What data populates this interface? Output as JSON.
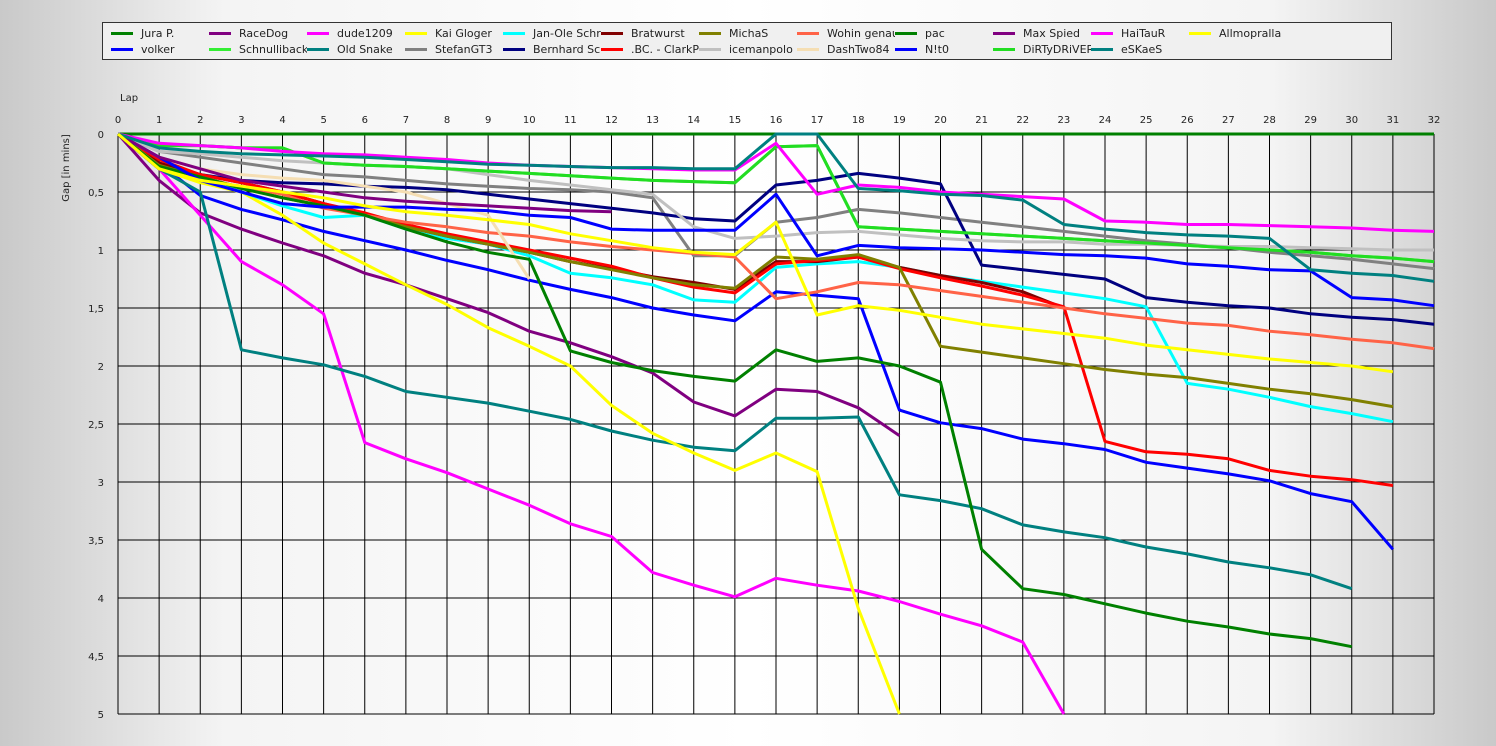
{
  "chart_data": {
    "type": "line",
    "xlabel": "Lap",
    "ylabel": "Gap [in mins]",
    "xlim": [
      0,
      32
    ],
    "ylim": [
      0,
      5
    ],
    "y_ticks": [
      "0",
      "0,5",
      "1",
      "1,5",
      "2",
      "2,5",
      "3",
      "3,5",
      "4",
      "4,5",
      "5"
    ],
    "x_ticks": [
      "0",
      "1",
      "2",
      "3",
      "4",
      "5",
      "6",
      "7",
      "8",
      "9",
      "10",
      "11",
      "12",
      "13",
      "14",
      "15",
      "16",
      "17",
      "18",
      "19",
      "20",
      "21",
      "22",
      "23",
      "24",
      "25",
      "26",
      "27",
      "28",
      "29",
      "30",
      "31",
      "32"
    ],
    "legend_position": "top",
    "grid": true,
    "series": [
      {
        "name": "Jura P.",
        "color": "#008000",
        "values": [
          0,
          0,
          0,
          0,
          0,
          0,
          0,
          0,
          0,
          0,
          0,
          0,
          0,
          0,
          0,
          0,
          0,
          0,
          0,
          0,
          0,
          0,
          0,
          0,
          0,
          0,
          0,
          0,
          0,
          0,
          0,
          0,
          0
        ]
      },
      {
        "name": "volker",
        "color": "#0000ff",
        "values": [
          0,
          0.25,
          0.53,
          0.65,
          0.74,
          0.84,
          0.92,
          1.0,
          1.09,
          1.17,
          1.26,
          1.34,
          1.41,
          1.5,
          1.56,
          1.61,
          1.36,
          1.39,
          1.42,
          2.38,
          2.49,
          2.54,
          2.63,
          2.67,
          2.72,
          2.83,
          2.88,
          2.93,
          2.99,
          3.1,
          3.17,
          3.58
        ]
      },
      {
        "name": "RaceDog",
        "color": "#800080",
        "values": [
          0,
          0.4,
          0.68,
          0.82,
          0.94,
          1.05,
          1.2,
          1.3,
          1.42,
          1.54,
          1.7,
          1.8,
          1.92,
          2.06,
          2.31,
          2.43,
          2.2,
          2.22,
          2.36,
          2.6
        ]
      },
      {
        "name": "Schnullibacke",
        "color": "#33ee33",
        "values": [
          0,
          0.1,
          0.1,
          0.12,
          0.12,
          0.25,
          0.27,
          0.28,
          0.3,
          0.32,
          0.34,
          0.36,
          0.38,
          0.4,
          0.41,
          0.42,
          0.11,
          0.1,
          0.8,
          0.82,
          0.84,
          0.86,
          0.88,
          0.9,
          0.92,
          0.94,
          0.96,
          0.98,
          1.0,
          1.02,
          1.05,
          1.07,
          1.1
        ]
      },
      {
        "name": "dude1209",
        "color": "#ff00ff",
        "values": [
          0,
          0.3,
          0.7,
          1.1,
          1.3,
          1.55,
          2.66,
          2.8,
          2.92,
          3.06,
          3.2,
          3.36,
          3.47,
          3.78,
          3.89,
          3.99,
          3.83,
          3.89,
          3.94,
          4.03,
          4.14,
          4.24,
          4.38,
          5.0
        ]
      },
      {
        "name": "Old Snake",
        "color": "#008080",
        "values": [
          0,
          0.3,
          0.5,
          1.86,
          1.93,
          1.99,
          2.09,
          2.22,
          2.27,
          2.32,
          2.39,
          2.46,
          2.56,
          2.64,
          2.7,
          2.73,
          2.45,
          2.45,
          2.44,
          3.11,
          3.16,
          3.23,
          3.37,
          3.43,
          3.48,
          3.56,
          3.62,
          3.69,
          3.74,
          3.8,
          3.92
        ]
      },
      {
        "name": "Kai Gloger",
        "color": "#ffff00",
        "values": [
          0,
          0.3,
          0.42,
          0.5,
          0.7,
          0.94,
          1.12,
          1.3,
          1.47,
          1.67,
          1.83,
          2.0,
          2.34,
          2.58,
          2.75,
          2.9,
          2.75,
          2.91,
          4.09,
          5.0
        ]
      },
      {
        "name": "StefanGT3",
        "color": "#808080",
        "values": [
          0,
          0.15,
          0.2,
          0.25,
          0.3,
          0.35,
          0.37,
          0.4,
          0.43,
          0.45,
          0.47,
          0.48,
          0.5,
          0.55,
          1.05,
          1.05,
          0.76,
          0.72,
          0.65,
          0.68,
          0.72,
          0.76,
          0.8,
          0.84,
          0.88,
          0.92,
          0.95,
          0.98,
          1.02,
          1.05,
          1.08,
          1.12,
          1.16
        ]
      },
      {
        "name": "Jan-Ole Schreiber",
        "color": "#00ffff",
        "values": [
          0,
          0.28,
          0.38,
          0.5,
          0.62,
          0.72,
          0.7,
          0.82,
          0.9,
          0.95,
          1.05,
          1.2,
          1.24,
          1.3,
          1.43,
          1.45,
          1.15,
          1.12,
          1.1,
          1.15,
          1.22,
          1.27,
          1.32,
          1.37,
          1.42,
          1.49,
          2.15,
          2.2,
          2.27,
          2.35,
          2.41,
          2.48
        ]
      },
      {
        "name": "Bernhard Schupfner",
        "color": "#000080",
        "values": [
          0,
          0.3,
          0.35,
          0.4,
          0.42,
          0.43,
          0.45,
          0.46,
          0.48,
          0.52,
          0.56,
          0.6,
          0.64,
          0.68,
          0.73,
          0.75,
          0.44,
          0.4,
          0.34,
          0.38,
          0.43,
          1.13,
          1.17,
          1.21,
          1.25,
          1.41,
          1.45,
          1.48,
          1.5,
          1.55,
          1.58,
          1.6,
          1.64
        ]
      },
      {
        "name": "Bratwurst",
        "color": "#800000",
        "values": [
          0,
          0.25,
          0.35,
          0.42,
          0.5,
          0.6,
          0.7,
          0.8,
          0.88,
          0.95,
          1.02,
          1.1,
          1.16,
          1.23,
          1.28,
          1.34,
          1.1,
          1.1,
          1.06,
          1.15,
          1.22,
          1.28,
          1.36,
          1.5
        ]
      },
      {
        "name": ".BC. - ClarkParker",
        "color": "#ff0000",
        "values": [
          0,
          0.22,
          0.35,
          0.42,
          0.5,
          0.6,
          0.68,
          0.78,
          0.86,
          0.93,
          1.0,
          1.07,
          1.14,
          1.24,
          1.32,
          1.37,
          1.12,
          1.09,
          1.06,
          1.16,
          1.24,
          1.31,
          1.39,
          1.49,
          2.65,
          2.74,
          2.76,
          2.8,
          2.9,
          2.95,
          2.98,
          3.03
        ]
      },
      {
        "name": "MichaS",
        "color": "#808000",
        "values": [
          0,
          0.27,
          0.37,
          0.46,
          0.55,
          0.62,
          0.7,
          0.8,
          0.88,
          0.95,
          1.02,
          1.1,
          1.17,
          1.24,
          1.3,
          1.33,
          1.06,
          1.08,
          1.04,
          1.15,
          1.83,
          1.88,
          1.93,
          1.98,
          2.03,
          2.07,
          2.1,
          2.15,
          2.2,
          2.24,
          2.29,
          2.35
        ]
      },
      {
        "name": "icemanpolo",
        "color": "#c0c0c0",
        "values": [
          0,
          0.15,
          0.17,
          0.2,
          0.23,
          0.25,
          0.27,
          0.28,
          0.3,
          0.35,
          0.4,
          0.44,
          0.48,
          0.52,
          0.8,
          0.9,
          0.88,
          0.85,
          0.84,
          0.87,
          0.9,
          0.92,
          0.93,
          0.93,
          0.95,
          0.95,
          0.96,
          0.97,
          0.97,
          0.98,
          0.99,
          1.0,
          1.0
        ]
      },
      {
        "name": "Wohin genau",
        "color": "#ff6347",
        "values": [
          0,
          0.28,
          0.4,
          0.45,
          0.52,
          0.64,
          0.7,
          0.76,
          0.8,
          0.85,
          0.88,
          0.93,
          0.97,
          1.0,
          1.03,
          1.06,
          1.42,
          1.36,
          1.28,
          1.3,
          1.35,
          1.4,
          1.45,
          1.5,
          1.55,
          1.59,
          1.63,
          1.65,
          1.7,
          1.73,
          1.77,
          1.8,
          1.85
        ]
      },
      {
        "name": "DashTwo84",
        "color": "#f5deb3",
        "values": [
          0,
          0.2,
          0.3,
          0.35,
          0.38,
          0.4,
          0.45,
          0.5,
          0.6,
          0.7,
          1.25
        ]
      },
      {
        "name": "pac",
        "color": "#008000",
        "values": [
          0,
          0.28,
          0.37,
          0.47,
          0.55,
          0.62,
          0.7,
          0.82,
          0.93,
          1.02,
          1.08,
          1.87,
          1.97,
          2.04,
          2.09,
          2.13,
          1.86,
          1.96,
          1.93,
          2.0,
          2.14,
          3.58,
          3.92,
          3.97,
          4.05,
          4.13,
          4.2,
          4.25,
          4.31,
          4.35,
          4.42
        ]
      },
      {
        "name": "N!t0",
        "color": "#0000ff",
        "values": [
          0,
          0.2,
          0.4,
          0.5,
          0.6,
          0.63,
          0.63,
          0.63,
          0.65,
          0.66,
          0.7,
          0.72,
          0.82,
          0.83,
          0.83,
          0.83,
          0.52,
          1.05,
          0.96,
          0.98,
          0.99,
          1.0,
          1.02,
          1.04,
          1.05,
          1.07,
          1.12,
          1.14,
          1.17,
          1.18,
          1.41,
          1.43,
          1.48
        ]
      },
      {
        "name": "Max Spied",
        "color": "#800080",
        "values": [
          0,
          0.2,
          0.3,
          0.4,
          0.45,
          0.5,
          0.55,
          0.58,
          0.6,
          0.62,
          0.64,
          0.66,
          0.67
        ]
      },
      {
        "name": "DiRTyDRiVER",
        "color": "#22dd22",
        "values": [
          0,
          0.1,
          0.1,
          0.12,
          0.12,
          0.25,
          0.27,
          0.28,
          0.3,
          0.32,
          0.34,
          0.36,
          0.38,
          0.4,
          0.41,
          0.42,
          0.11,
          0.1,
          0.8,
          0.82,
          0.84,
          0.86,
          0.88,
          0.9,
          0.92,
          0.94,
          0.96,
          0.98,
          1.0,
          1.02,
          1.05,
          1.07,
          1.1
        ]
      },
      {
        "name": "HaiTauR",
        "color": "#ff00ff",
        "values": [
          0,
          0.08,
          0.1,
          0.12,
          0.15,
          0.17,
          0.18,
          0.2,
          0.22,
          0.25,
          0.27,
          0.28,
          0.29,
          0.3,
          0.31,
          0.31,
          0.08,
          0.52,
          0.44,
          0.46,
          0.5,
          0.52,
          0.54,
          0.56,
          0.75,
          0.76,
          0.78,
          0.78,
          0.79,
          0.8,
          0.81,
          0.83,
          0.84
        ]
      },
      {
        "name": "eSKaeS",
        "color": "#008080",
        "values": [
          0,
          0.12,
          0.15,
          0.17,
          0.18,
          0.19,
          0.2,
          0.22,
          0.24,
          0.26,
          0.27,
          0.28,
          0.29,
          0.29,
          0.3,
          0.3,
          0.0,
          0.0,
          0.47,
          0.49,
          0.52,
          0.53,
          0.57,
          0.78,
          0.82,
          0.85,
          0.87,
          0.88,
          0.9,
          1.17,
          1.2,
          1.22,
          1.27
        ]
      },
      {
        "name": "Allmopralla",
        "color": "#ffff00",
        "values": [
          0,
          0.3,
          0.4,
          0.45,
          0.5,
          0.55,
          0.62,
          0.67,
          0.7,
          0.74,
          0.78,
          0.86,
          0.92,
          0.98,
          1.02,
          1.04,
          0.76,
          1.56,
          1.48,
          1.52,
          1.58,
          1.64,
          1.68,
          1.72,
          1.76,
          1.82,
          1.86,
          1.9,
          1.94,
          1.97,
          2.0,
          2.05
        ]
      }
    ]
  }
}
